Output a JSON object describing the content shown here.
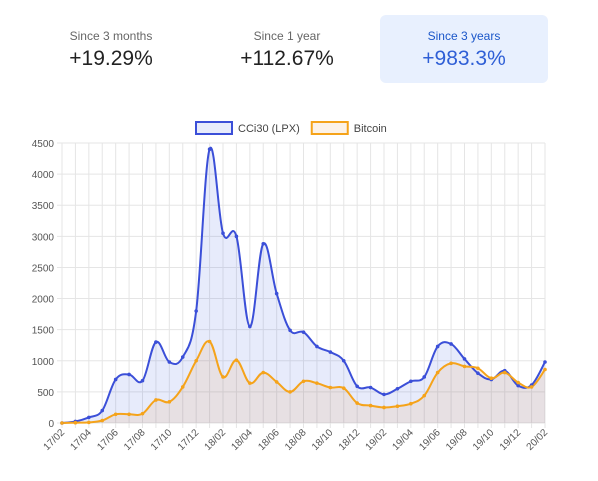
{
  "tabs": [
    {
      "label": "Since 3 months",
      "value": "+19.29%",
      "active": false
    },
    {
      "label": "Since 1 year",
      "value": "+112.67%",
      "active": false
    },
    {
      "label": "Since 3 years",
      "value": "+983.3%",
      "active": true
    }
  ],
  "colors": {
    "lpx": "#3b4fd8",
    "lpx_fill": "rgba(60,90,220,0.12)",
    "btc": "#f5a31a",
    "btc_fill": "rgba(230,150,60,0.12)",
    "grid": "#e5e5e5",
    "tick_text": "#555555"
  },
  "chart_data": {
    "type": "line",
    "title": "",
    "xlabel": "",
    "ylabel": "",
    "ylim": [
      0,
      4500
    ],
    "yticks": [
      "0",
      "500",
      "1000",
      "1500",
      "2000",
      "2500",
      "3000",
      "3500",
      "4000",
      "4500"
    ],
    "xtick_labels": [
      "17/02",
      "17/04",
      "17/06",
      "17/08",
      "17/10",
      "17/12",
      "18/02",
      "18/04",
      "18/06",
      "18/08",
      "18/10",
      "18/12",
      "19/02",
      "19/04",
      "19/06",
      "19/08",
      "19/10",
      "19/12",
      "20/02"
    ],
    "grid": true,
    "legend_position": "top-center",
    "x": [
      "17/02",
      "17/03",
      "17/04",
      "17/05",
      "17/06",
      "17/07",
      "17/08",
      "17/09",
      "17/10",
      "17/11",
      "17/12",
      "18/01",
      "18/02",
      "18/03",
      "18/04",
      "18/05",
      "18/06",
      "18/07",
      "18/08",
      "18/09",
      "18/10",
      "18/11",
      "18/12",
      "19/01",
      "19/02",
      "19/03",
      "19/04",
      "19/05",
      "19/06",
      "19/07",
      "19/08",
      "19/09",
      "19/10",
      "19/11",
      "19/12",
      "20/01",
      "20/02"
    ],
    "series": [
      {
        "name": "CCi30 (LPX)",
        "values": [
          0,
          25,
          90,
          200,
          700,
          780,
          680,
          1300,
          980,
          1060,
          1800,
          4400,
          3050,
          3000,
          1550,
          2880,
          2080,
          1490,
          1460,
          1230,
          1140,
          1000,
          590,
          570,
          460,
          550,
          670,
          740,
          1230,
          1270,
          1030,
          800,
          700,
          840,
          600,
          610,
          980
        ]
      },
      {
        "name": "Bitcoin",
        "values": [
          0,
          5,
          10,
          40,
          140,
          140,
          150,
          370,
          340,
          580,
          1000,
          1310,
          740,
          1010,
          640,
          810,
          660,
          500,
          670,
          640,
          570,
          560,
          320,
          280,
          250,
          270,
          310,
          440,
          810,
          960,
          910,
          880,
          720,
          810,
          650,
          580,
          860
        ]
      }
    ]
  }
}
